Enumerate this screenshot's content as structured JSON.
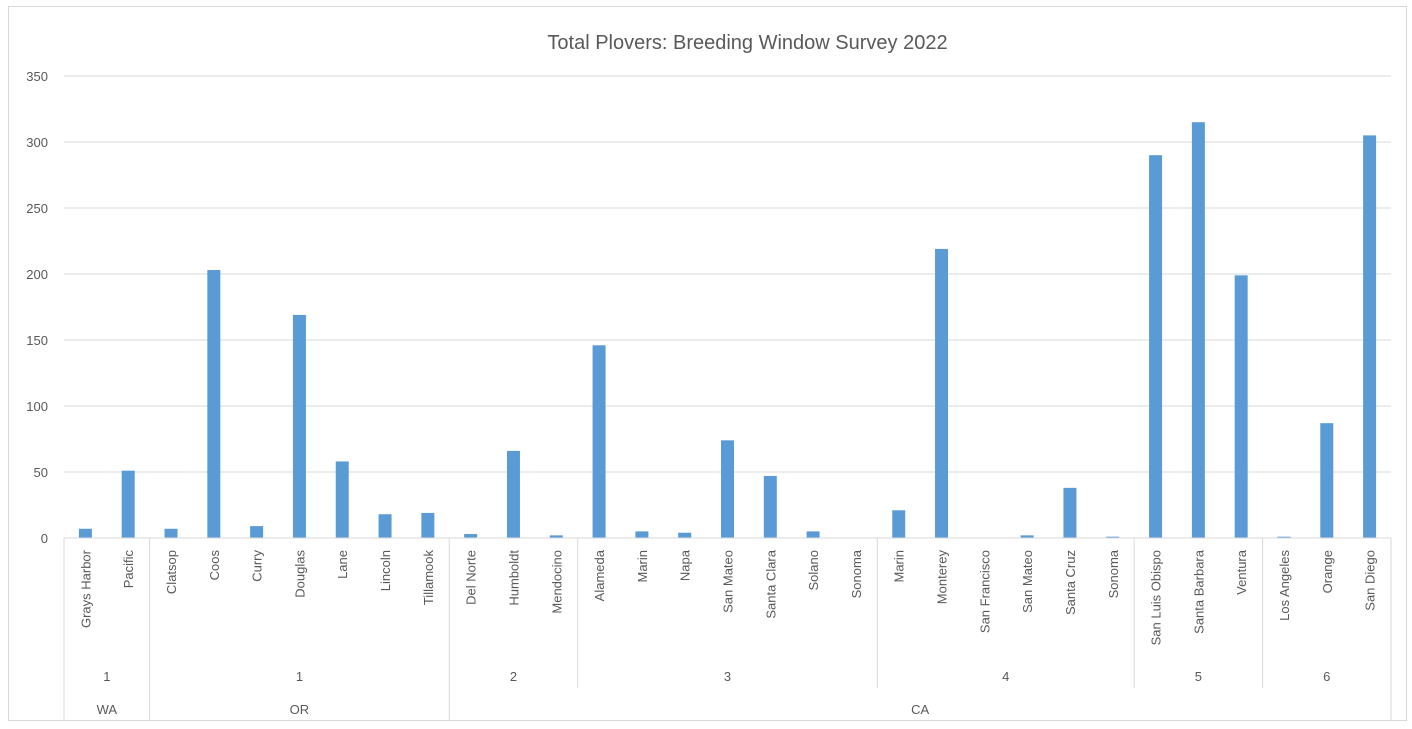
{
  "chart_data": {
    "type": "bar",
    "title": "Total Plovers: Breeding Window Survey 2022",
    "ylim": [
      0,
      350
    ],
    "yticks": [
      0,
      50,
      100,
      150,
      200,
      250,
      300,
      350
    ],
    "grid": true,
    "legend": "none",
    "bar_color": "#5b9bd5",
    "categories": [
      "Grays Harbor",
      "Pacific",
      "Clatsop",
      "Coos",
      "Curry",
      "Douglas",
      "Lane",
      "Lincoln",
      "Tillamook",
      "Del Norte",
      "Humboldt",
      "Mendocino",
      "Alameda",
      "Marin",
      "Napa",
      "San Mateo",
      "Santa Clara",
      "Solano",
      "Sonoma",
      "Marin",
      "Monterey",
      "San Francisco",
      "San Mateo",
      "Santa Cruz",
      "Sonoma",
      "San Luis Obispo",
      "Santa Barbara",
      "Ventura",
      "Los Angeles",
      "Orange",
      "San Diego"
    ],
    "values": [
      7,
      51,
      7,
      203,
      9,
      169,
      58,
      18,
      19,
      3,
      66,
      2,
      146,
      5,
      4,
      74,
      47,
      5,
      0,
      21,
      219,
      0,
      2,
      38,
      1,
      290,
      315,
      199,
      1,
      87,
      305
    ],
    "level2_groups": [
      {
        "label": "1",
        "count": 2
      },
      {
        "label": "1",
        "count": 7
      },
      {
        "label": "2",
        "count": 3
      },
      {
        "label": "3",
        "count": 7
      },
      {
        "label": "4",
        "count": 6
      },
      {
        "label": "5",
        "count": 3
      },
      {
        "label": "6",
        "count": 3
      }
    ],
    "level3_groups": [
      {
        "label": "WA",
        "count": 2
      },
      {
        "label": "OR",
        "count": 7
      },
      {
        "label": "CA",
        "count": 22
      }
    ]
  }
}
